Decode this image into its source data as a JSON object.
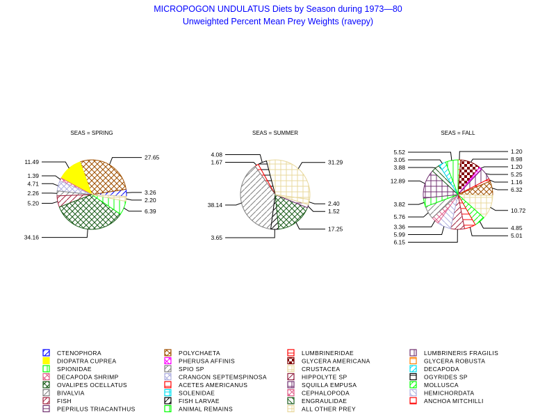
{
  "chart_data": {
    "type": "pie",
    "title": "MICROPOGON UNDULATUS Diets by Season during 1973—80",
    "subtitle": "Unweighted Percent Mean Prey Weights (ravepy)",
    "legend_position": "bottom",
    "legend_columns": [
      [
        {
          "key": "ctenophora",
          "label": "CTENOPHORA",
          "color": "#0000ff",
          "pattern": "diag"
        },
        {
          "key": "diopatra",
          "label": "DIOPATRA CUPREA",
          "color": "#ffff00",
          "pattern": "solid"
        },
        {
          "key": "spionidae",
          "label": "SPIONIDAE",
          "color": "#00ff00",
          "pattern": "vert"
        },
        {
          "key": "decapoda_shrimp",
          "label": "DECAPODA SHRIMP",
          "color": "#e0608a",
          "pattern": "cross"
        },
        {
          "key": "ovalipes",
          "label": "OVALIPES OCELLATUS",
          "color": "#1a5c1a",
          "pattern": "cross"
        },
        {
          "key": "bivalvia",
          "label": "BIVALVIA",
          "color": "#808080",
          "pattern": "diag"
        },
        {
          "key": "fish",
          "label": "FISH",
          "color": "#a0203c",
          "pattern": "diag"
        },
        {
          "key": "peprilus",
          "label": "PEPRILUS TRIACANTHUS",
          "color": "#70306e",
          "pattern": "horiz"
        }
      ],
      [
        {
          "key": "polychaeta",
          "label": "POLYCHAETA",
          "color": "#a05000",
          "pattern": "cross"
        },
        {
          "key": "pherusa",
          "label": "PHERUSA AFFINIS",
          "color": "#ff00ff",
          "pattern": "cross"
        },
        {
          "key": "spio",
          "label": "SPIO SP",
          "color": "#808080",
          "pattern": "diag"
        },
        {
          "key": "crangon",
          "label": "CRANGON SEPTEMSPINOSA",
          "color": "#b0b0e0",
          "pattern": "cross"
        },
        {
          "key": "acetes",
          "label": "ACETES AMERICANUS",
          "color": "#ff0000",
          "pattern": "horiz"
        },
        {
          "key": "solenidae",
          "label": "SOLENIDAE",
          "color": "#00e0f0",
          "pattern": "grid"
        },
        {
          "key": "fish_larvae",
          "label": "FISH LARVAE",
          "color": "#000000",
          "pattern": "diag"
        },
        {
          "key": "animal_remains",
          "label": "ANIMAL REMAINS",
          "color": "#00ff00",
          "pattern": "vert"
        }
      ],
      [
        {
          "key": "lumbrineridae",
          "label": "LUMBRINERIDAE",
          "color": "#ff0000",
          "pattern": "horiz"
        },
        {
          "key": "glycera_am",
          "label": "GLYCERA AMERICANA",
          "color": "#800000",
          "pattern": "checker"
        },
        {
          "key": "crustacea",
          "label": "CRUSTACEA",
          "color": "#e8d89c",
          "pattern": "grid"
        },
        {
          "key": "hippolyte",
          "label": "HIPPOLYTE SP",
          "color": "#902040",
          "pattern": "diag"
        },
        {
          "key": "squilla",
          "label": "SQUILLA EMPUSA",
          "color": "#703070",
          "pattern": "grid"
        },
        {
          "key": "cephalopoda",
          "label": "CEPHALOPODA",
          "color": "#e0608a",
          "pattern": "cross"
        },
        {
          "key": "engraulidae",
          "label": "ENGRAULIDAE",
          "color": "#1a5c1a",
          "pattern": "antidiag"
        },
        {
          "key": "other",
          "label": "ALL OTHER PREY",
          "color": "#e8d89c",
          "pattern": "grid"
        }
      ],
      [
        {
          "key": "lumbrineris",
          "label": "LUMBRINERIS FRAGILIS",
          "color": "#70306e",
          "pattern": "vert"
        },
        {
          "key": "glycera_rob",
          "label": "GLYCERA ROBUSTA",
          "color": "#ff8000",
          "pattern": "horiz"
        },
        {
          "key": "decapoda",
          "label": "DECAPODA",
          "color": "#00e0f0",
          "pattern": "diag"
        },
        {
          "key": "ogyrides",
          "label": "OGYRIDES SP",
          "color": "#000000",
          "pattern": "horiz"
        },
        {
          "key": "mollusca",
          "label": "MOLLUSCA",
          "color": "#00ff00",
          "pattern": "diag"
        },
        {
          "key": "hemichordata",
          "label": "HEMICHORDATA",
          "color": "#b0b0e0",
          "pattern": "antidiag"
        },
        {
          "key": "anchoa",
          "label": "ANCHOA MITCHILLI",
          "color": "#ff0000",
          "pattern": "horiz"
        }
      ]
    ],
    "pies": [
      {
        "title": "SEAS = SPRING",
        "start_angle": -3,
        "slices": [
          {
            "key": "ctenophora",
            "value": 3.26,
            "label": "3.26"
          },
          {
            "key": "polychaeta",
            "value": 27.65,
            "label": "27.65"
          },
          {
            "key": "diopatra",
            "value": 11.49,
            "label": "11.49"
          },
          {
            "key": "decapoda_shrimp",
            "value": 1.39,
            "label": "1.39"
          },
          {
            "key": "crangon",
            "value": 4.71,
            "label": "4.71"
          },
          {
            "key": "bivalvia",
            "value": 2.26,
            "label": "2.26"
          },
          {
            "key": "fish",
            "value": 5.2,
            "label": "5.20"
          },
          {
            "key": "ovalipes",
            "value": 34.16,
            "label": "34.16"
          },
          {
            "key": "spionidae",
            "value": 6.39,
            "label": "6.39"
          },
          {
            "key": "crustacea",
            "value": 2.2,
            "label": "2.20"
          }
        ]
      },
      {
        "title": "SEAS = SUMMER",
        "start_angle": -8,
        "slices": [
          {
            "key": "crustacea",
            "value": 31.29,
            "label": "31.29"
          },
          {
            "key": "ogyrides",
            "value": 4.08,
            "label": "4.08"
          },
          {
            "key": "anchoa",
            "value": 1.67,
            "label": "1.67"
          },
          {
            "key": "bivalvia",
            "value": 38.14,
            "label": "38.14"
          },
          {
            "key": "fish_larvae",
            "value": 3.65,
            "label": "3.65"
          },
          {
            "key": "ovalipes",
            "value": 17.25,
            "label": "17.25"
          },
          {
            "key": "peprilus",
            "value": 1.52,
            "label": "1.52"
          },
          {
            "key": "other",
            "value": 2.4,
            "label": "2.40"
          }
        ]
      },
      {
        "title": "SEAS = FALL",
        "start_angle": 90,
        "clockwise": true,
        "slices": [
          {
            "key": "glycera_rob",
            "value": 1.2,
            "label": "1.20"
          },
          {
            "key": "glycera_am",
            "value": 8.98,
            "label": "8.98"
          },
          {
            "key": "pherusa",
            "value": 1.2,
            "label": "1.20"
          },
          {
            "key": "lumbrineris",
            "value": 5.25,
            "label": "5.25"
          },
          {
            "key": "lumbrineridae",
            "value": 1.16,
            "label": "1.16"
          },
          {
            "key": "polychaeta",
            "value": 6.32,
            "label": "6.32"
          },
          {
            "key": "crustacea",
            "value": 10.72,
            "label": "10.72"
          },
          {
            "key": "mollusca",
            "value": 4.85,
            "label": "4.85"
          },
          {
            "key": "anchoa",
            "value": 5.01,
            "label": "5.01"
          },
          {
            "key": "fish",
            "value": 6.15,
            "label": "6.15"
          },
          {
            "key": "hemichordata",
            "value": 5.99,
            "label": "5.99"
          },
          {
            "key": "cephalopoda",
            "value": 3.36,
            "label": "3.36"
          },
          {
            "key": "bivalvia",
            "value": 5.76,
            "label": "5.76"
          },
          {
            "key": "animal_remains",
            "value": 3.82,
            "label": "3.82"
          },
          {
            "key": "squilla",
            "value": 12.89,
            "label": "12.89"
          },
          {
            "key": "engraulidae",
            "value": 3.88,
            "label": "3.88"
          },
          {
            "key": "decapoda",
            "value": 3.05,
            "label": "3.05"
          },
          {
            "key": "spionidae",
            "value": 5.52,
            "label": "5.52"
          }
        ]
      }
    ]
  }
}
